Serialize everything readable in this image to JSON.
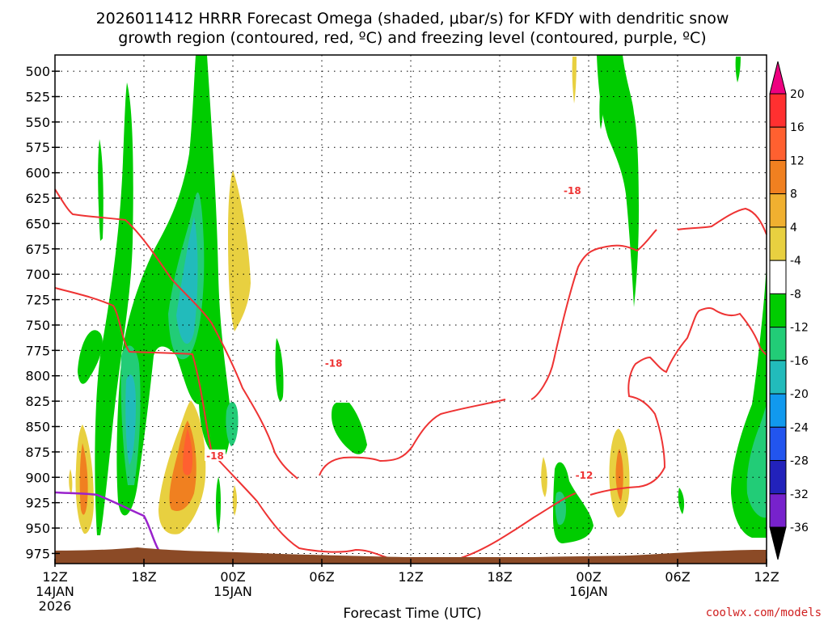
{
  "chart_data": {
    "type": "time-height",
    "title_line1": "2026011412 HRRR Forecast Omega (shaded, μbar/s) for KFDY with dendritic snow",
    "title_line2": "growth region (contoured, red, ºC) and freezing level (contoured, purple, ºC)",
    "xlabel": "Forecast Time (UTC)",
    "xlim_hours": [
      0,
      48
    ],
    "x_ticks": [
      {
        "h": 0,
        "label": "12Z",
        "sub1": "14JAN",
        "sub2": "2026"
      },
      {
        "h": 6,
        "label": "18Z"
      },
      {
        "h": 12,
        "label": "00Z",
        "sub1": "15JAN"
      },
      {
        "h": 18,
        "label": "06Z"
      },
      {
        "h": 24,
        "label": "12Z"
      },
      {
        "h": 30,
        "label": "18Z"
      },
      {
        "h": 36,
        "label": "00Z",
        "sub1": "16JAN"
      },
      {
        "h": 42,
        "label": "06Z"
      },
      {
        "h": 48,
        "label": "12Z"
      }
    ],
    "y_ticks": [
      500,
      525,
      550,
      575,
      600,
      625,
      650,
      675,
      700,
      725,
      750,
      775,
      800,
      825,
      850,
      875,
      900,
      925,
      950,
      975
    ],
    "ylim_hpa": [
      484,
      985
    ],
    "colorbar": {
      "ticks": [
        "20",
        "16",
        "12",
        "8",
        "4",
        "-4",
        "-8",
        "-12",
        "-16",
        "-20",
        "-24",
        "-28",
        "-32",
        "-36"
      ],
      "colors": [
        "#ee0080",
        "#ff3030",
        "#ff6030",
        "#f08020",
        "#f0b030",
        "#e8d040",
        "#ffffff",
        "#00cc00",
        "#22cc77",
        "#22bbbb",
        "#1199ee",
        "#2255ee",
        "#2222bb",
        "#7722cc",
        "#aa22cc",
        "#a8a8a8",
        "#000000"
      ]
    },
    "contour_labels": [
      {
        "text": "-18",
        "h": 34.9,
        "p": 618
      },
      {
        "text": "-18",
        "h": 18.8,
        "p": 788
      },
      {
        "text": "-18",
        "h": 10.8,
        "p": 879
      },
      {
        "text": "-12",
        "h": 35.7,
        "p": 898
      }
    ]
  },
  "credit": "coolwx.com/models",
  "colors": {
    "dgz_contour": "#ee3333",
    "freezing_level": "#9922cc",
    "terrain": "#8b4a26"
  }
}
